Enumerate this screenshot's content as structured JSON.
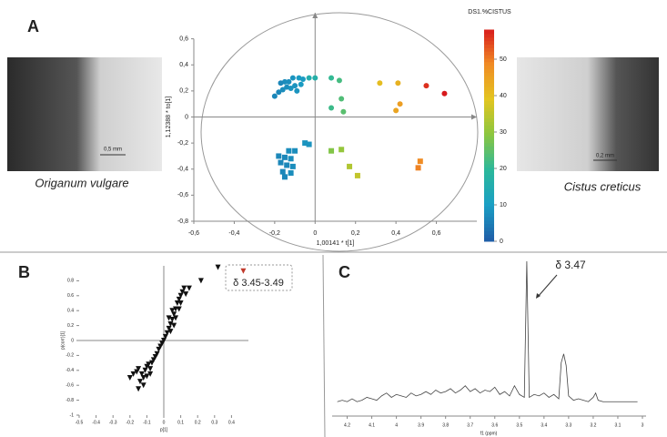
{
  "panel_labels": [
    "A",
    "B",
    "C"
  ],
  "images": [
    {
      "caption": "Origanum vulgare",
      "scale_bar": "0,5 mm"
    },
    {
      "caption": "Cistus creticus",
      "scale_bar": "0,2 mm"
    }
  ],
  "chart_data": [
    {
      "type": "scatter",
      "xlabel": "1,00141 * t[1]",
      "ylabel": "1,12388 * to[1]",
      "xlim": [
        -0.6,
        0.8
      ],
      "ylim": [
        -0.8,
        0.8
      ],
      "xticks": [
        {
          "value": -0.6,
          "label": "-0,6"
        },
        {
          "value": -0.4,
          "label": "-0,4"
        },
        {
          "value": -0.2,
          "label": "-0,2"
        },
        0,
        {
          "value": 0.2,
          "label": "0,2"
        },
        {
          "value": 0.4,
          "label": "0,4"
        },
        {
          "value": 0.6,
          "label": "0,6"
        }
      ],
      "yticks": [
        {
          "value": -0.8,
          "label": "-0,8"
        },
        {
          "value": -0.6,
          "label": "-0,6"
        },
        {
          "value": -0.4,
          "label": "-0,4"
        },
        {
          "value": -0.2,
          "label": "-0,2"
        },
        0,
        {
          "value": 0.2,
          "label": "0,2"
        },
        {
          "value": 0.4,
          "label": "0,4"
        },
        {
          "value": 0.6,
          "label": "0,6"
        }
      ],
      "colorbar": {
        "title": "DS1.%CISTUS",
        "lim": [
          0,
          58
        ],
        "ticks": [
          0,
          10,
          20,
          30,
          40,
          50
        ],
        "colors": [
          "#1f5fa8",
          "#1a9fc4",
          "#2cb89a",
          "#8cc63f",
          "#e3c520",
          "#f08a24",
          "#d7191c"
        ]
      },
      "series": [
        {
          "marker": "circle",
          "x": [
            -0.2,
            -0.18,
            -0.16,
            -0.14,
            -0.12,
            -0.1,
            -0.13,
            -0.11,
            -0.08,
            -0.06,
            -0.15,
            -0.17,
            -0.09,
            -0.07,
            -0.03,
            0.0,
            0.08,
            0.12,
            0.08,
            0.13,
            0.14,
            0.32,
            0.41,
            0.42,
            0.4,
            0.55,
            0.64
          ],
          "y": [
            0.16,
            0.19,
            0.21,
            0.23,
            0.22,
            0.24,
            0.27,
            0.3,
            0.3,
            0.29,
            0.27,
            0.26,
            0.2,
            0.25,
            0.3,
            0.3,
            0.3,
            0.28,
            0.07,
            0.14,
            0.04,
            0.26,
            0.26,
            0.1,
            0.05,
            0.24,
            0.18
          ],
          "z": [
            6,
            6,
            7,
            7,
            8,
            8,
            7,
            8,
            9,
            9,
            7,
            6,
            8,
            9,
            15,
            16,
            20,
            22,
            21,
            23,
            24,
            40,
            42,
            45,
            44,
            56,
            58
          ]
        },
        {
          "marker": "square",
          "x": [
            -0.05,
            -0.03,
            -0.1,
            -0.13,
            -0.15,
            -0.18,
            -0.12,
            -0.17,
            -0.14,
            -0.11,
            -0.16,
            -0.15,
            -0.12,
            0.08,
            0.13,
            0.17,
            0.21,
            0.52,
            0.51
          ],
          "y": [
            -0.2,
            -0.21,
            -0.26,
            -0.26,
            -0.31,
            -0.3,
            -0.32,
            -0.35,
            -0.37,
            -0.38,
            -0.42,
            -0.46,
            -0.43,
            -0.26,
            -0.25,
            -0.38,
            -0.45,
            -0.34,
            -0.39
          ],
          "z": [
            8,
            8,
            7,
            7,
            6,
            6,
            7,
            6,
            6,
            7,
            6,
            6,
            7,
            28,
            30,
            33,
            35,
            48,
            49
          ]
        }
      ]
    },
    {
      "type": "scatter",
      "xlabel": "p[1]",
      "ylabel": "p(corr)[1]",
      "annotation": "δ 3.45-3.49",
      "xlim": [
        -0.5,
        0.5
      ],
      "ylim": [
        -1,
        1
      ],
      "xticks": [
        -0.5,
        -0.4,
        -0.3,
        -0.2,
        -0.1,
        0,
        0.1,
        0.2,
        0.3,
        0.4
      ],
      "yticks": [
        -1,
        -0.8,
        -0.6,
        -0.4,
        -0.2,
        0,
        0.2,
        0.4,
        0.6,
        0.8
      ],
      "series": [
        {
          "marker": "triangle",
          "color": "#111111",
          "x": [
            -0.16,
            -0.15,
            -0.13,
            -0.12,
            -0.11,
            -0.1,
            -0.09,
            -0.08,
            -0.07,
            -0.06,
            -0.05,
            -0.04,
            -0.03,
            -0.02,
            -0.01,
            0,
            0.01,
            0.02,
            0.03,
            0.04,
            0.05,
            0.06,
            0.07,
            0.08,
            0.09,
            0.1,
            0.11,
            0.12,
            0.13,
            0.07,
            0.05,
            0.03,
            0.09,
            0.1,
            -0.1,
            -0.14,
            -0.15,
            -0.12,
            -0.08,
            0.04,
            0.06,
            0.15,
            0.22,
            0.32,
            -0.2,
            -0.18
          ],
          "y": [
            -0.42,
            -0.38,
            -0.45,
            -0.5,
            -0.4,
            -0.35,
            -0.32,
            -0.38,
            -0.3,
            -0.26,
            -0.22,
            -0.18,
            -0.12,
            -0.08,
            -0.04,
            0,
            0.05,
            0.1,
            0.16,
            0.22,
            0.28,
            0.35,
            0.42,
            0.5,
            0.55,
            0.6,
            0.65,
            0.7,
            0.62,
            0.3,
            0.4,
            0.3,
            0.42,
            0.5,
            -0.48,
            -0.55,
            -0.65,
            -0.6,
            -0.45,
            0.12,
            0.2,
            0.7,
            0.8,
            0.98,
            -0.5,
            -0.45
          ]
        },
        {
          "marker": "triangle",
          "color": "#c0392b",
          "x": [
            0.47
          ],
          "y": [
            0.93
          ]
        }
      ]
    },
    {
      "type": "line",
      "xlabel": "f1 (ppm)",
      "annotation": "δ 3.47",
      "xlim": [
        4.25,
        3.0
      ],
      "ylim": [
        0,
        100
      ],
      "xticks": [
        4.2,
        4.1,
        4,
        3.9,
        3.8,
        3.7,
        3.6,
        3.5,
        3.4,
        3.3,
        3.2,
        3.1,
        3
      ],
      "color": "#444444",
      "x": [
        4.24,
        4.22,
        4.2,
        4.18,
        4.16,
        4.14,
        4.12,
        4.1,
        4.08,
        4.06,
        4.04,
        4.02,
        4.0,
        3.98,
        3.96,
        3.94,
        3.92,
        3.9,
        3.88,
        3.86,
        3.84,
        3.82,
        3.8,
        3.78,
        3.76,
        3.74,
        3.72,
        3.7,
        3.68,
        3.66,
        3.64,
        3.62,
        3.6,
        3.58,
        3.56,
        3.54,
        3.52,
        3.5,
        3.48,
        3.47,
        3.46,
        3.44,
        3.42,
        3.4,
        3.38,
        3.36,
        3.34,
        3.33,
        3.32,
        3.31,
        3.3,
        3.28,
        3.26,
        3.24,
        3.22,
        3.2,
        3.19,
        3.18,
        3.16,
        3.14,
        3.12,
        3.1,
        3.08,
        3.06,
        3.04,
        3.02
      ],
      "values": [
        3,
        4,
        3,
        5,
        3,
        4,
        6,
        5,
        4,
        7,
        9,
        6,
        8,
        7,
        6,
        9,
        7,
        8,
        10,
        8,
        11,
        9,
        10,
        12,
        9,
        11,
        14,
        10,
        12,
        9,
        11,
        10,
        13,
        8,
        10,
        7,
        14,
        8,
        6,
        100,
        6,
        8,
        7,
        9,
        6,
        8,
        5,
        30,
        36,
        28,
        7,
        4,
        5,
        4,
        3,
        6,
        9,
        4,
        3,
        3,
        3,
        3,
        3,
        3,
        3,
        3
      ]
    }
  ]
}
